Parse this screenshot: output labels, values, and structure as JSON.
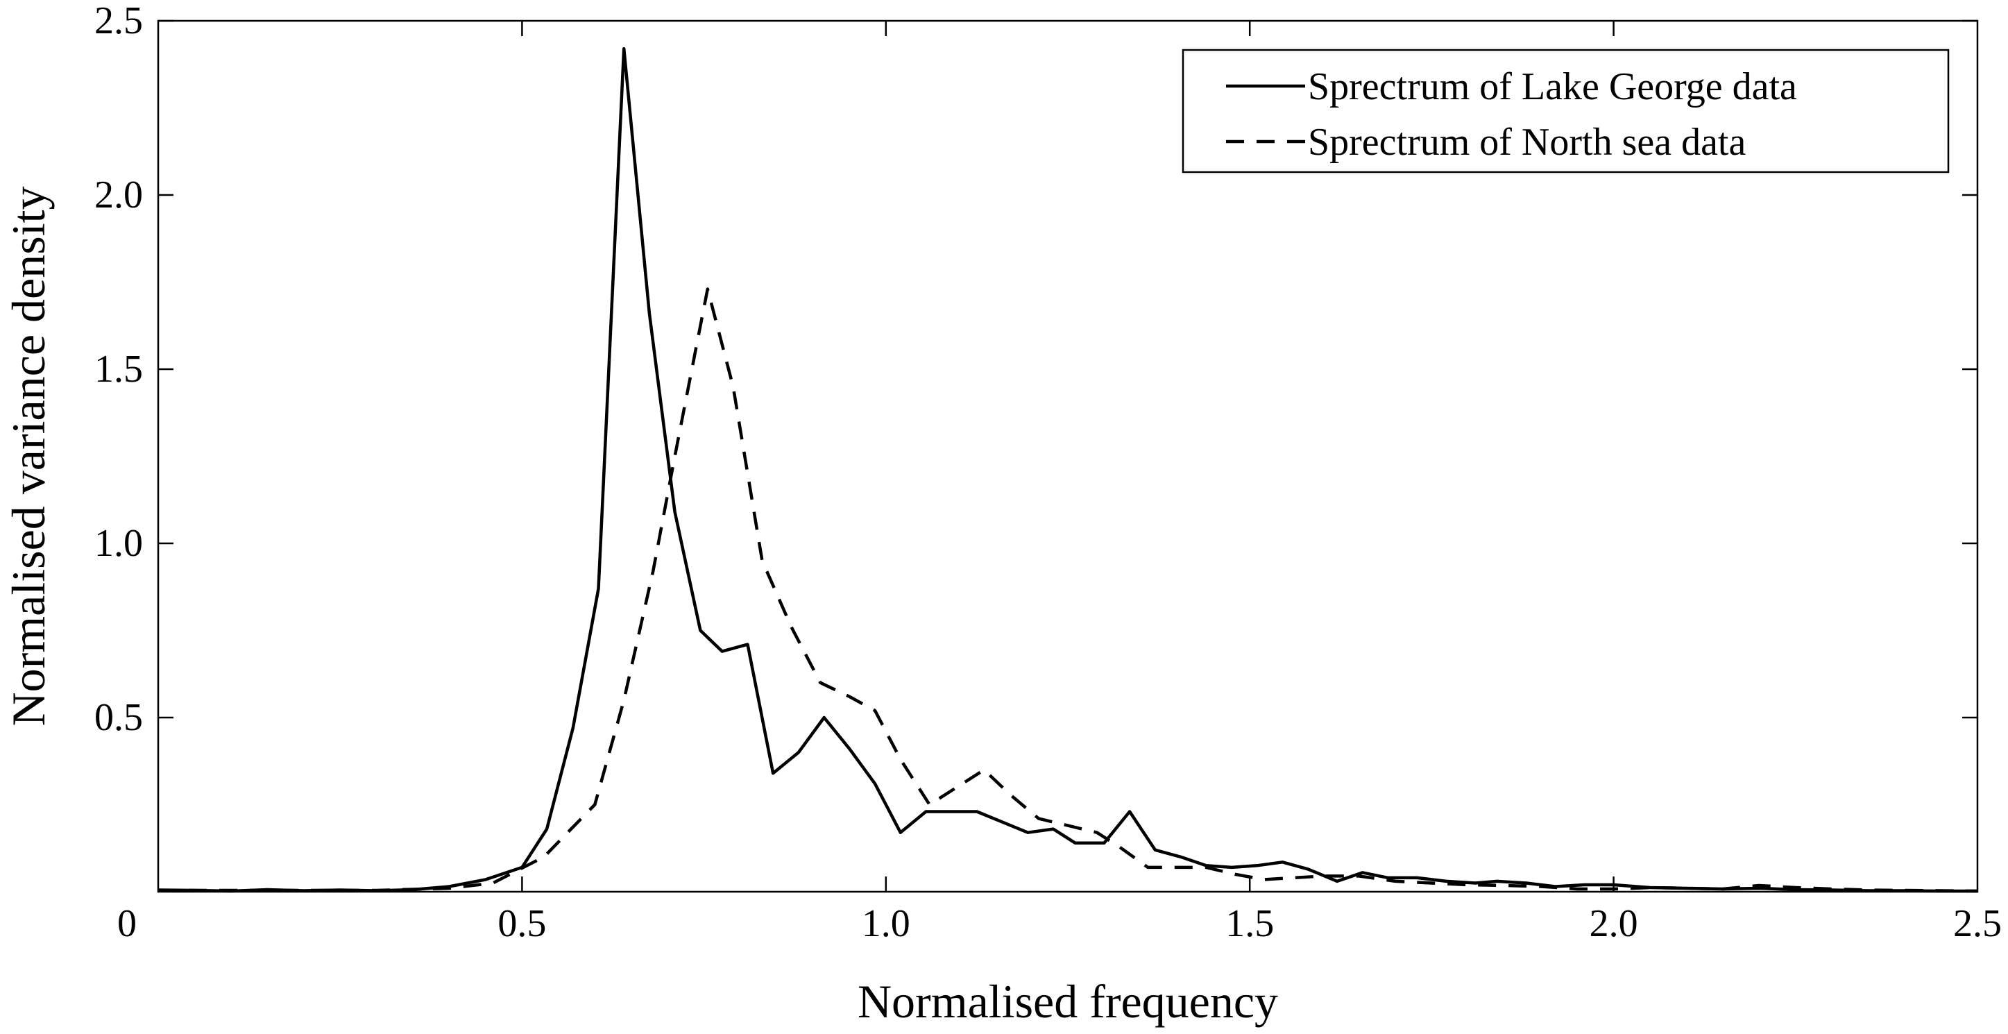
{
  "chart_data": {
    "type": "line",
    "title": "",
    "xlabel": "Normalised frequency",
    "ylabel": "Normalised variance density",
    "xlim": [
      0,
      2.5
    ],
    "ylim": [
      0,
      2.5
    ],
    "x_ticks": [
      0.5,
      1.0,
      1.5,
      2.0
    ],
    "x_tick_labels": [
      "0.5",
      "1.0",
      "1.5",
      "2.0"
    ],
    "x_origin_label": "0",
    "x_end_label": "2.5",
    "y_ticks": [
      0.5,
      1.0,
      1.5,
      2.0,
      2.5
    ],
    "y_tick_labels": [
      "0.5",
      "1.0",
      "1.5",
      "2.0",
      "2.5"
    ],
    "grid": false,
    "legend_position": "top-right",
    "series": [
      {
        "name": "Sprectrum of Lake George data",
        "line_style": "solid",
        "color": "#000000",
        "points": [
          [
            0.0,
            0.005
          ],
          [
            0.05,
            0.004
          ],
          [
            0.1,
            0.002
          ],
          [
            0.15,
            0.006
          ],
          [
            0.2,
            0.003
          ],
          [
            0.25,
            0.005
          ],
          [
            0.3,
            0.003
          ],
          [
            0.35,
            0.006
          ],
          [
            0.4,
            0.015
          ],
          [
            0.45,
            0.035
          ],
          [
            0.5,
            0.07
          ],
          [
            0.534,
            0.18
          ],
          [
            0.57,
            0.47
          ],
          [
            0.605,
            0.87
          ],
          [
            0.64,
            2.42
          ],
          [
            0.675,
            1.66
          ],
          [
            0.71,
            1.09
          ],
          [
            0.745,
            0.75
          ],
          [
            0.775,
            0.69
          ],
          [
            0.81,
            0.71
          ],
          [
            0.845,
            0.34
          ],
          [
            0.88,
            0.4
          ],
          [
            0.915,
            0.5
          ],
          [
            0.95,
            0.41
          ],
          [
            0.985,
            0.31
          ],
          [
            1.02,
            0.17
          ],
          [
            1.055,
            0.23
          ],
          [
            1.09,
            0.23
          ],
          [
            1.125,
            0.23
          ],
          [
            1.16,
            0.2
          ],
          [
            1.195,
            0.17
          ],
          [
            1.23,
            0.18
          ],
          [
            1.26,
            0.14
          ],
          [
            1.3,
            0.14
          ],
          [
            1.335,
            0.23
          ],
          [
            1.37,
            0.12
          ],
          [
            1.405,
            0.1
          ],
          [
            1.44,
            0.075
          ],
          [
            1.475,
            0.07
          ],
          [
            1.51,
            0.075
          ],
          [
            1.545,
            0.085
          ],
          [
            1.58,
            0.065
          ],
          [
            1.62,
            0.03
          ],
          [
            1.655,
            0.055
          ],
          [
            1.69,
            0.04
          ],
          [
            1.73,
            0.04
          ],
          [
            1.77,
            0.03
          ],
          [
            1.81,
            0.025
          ],
          [
            1.84,
            0.03
          ],
          [
            1.88,
            0.025
          ],
          [
            1.92,
            0.015
          ],
          [
            1.96,
            0.02
          ],
          [
            2.0,
            0.02
          ],
          [
            2.05,
            0.012
          ],
          [
            2.1,
            0.01
          ],
          [
            2.15,
            0.008
          ],
          [
            2.2,
            0.01
          ],
          [
            2.25,
            0.006
          ],
          [
            2.3,
            0.005
          ],
          [
            2.35,
            0.003
          ],
          [
            2.4,
            0.003
          ],
          [
            2.45,
            0.002
          ],
          [
            2.5,
            0.002
          ]
        ]
      },
      {
        "name": "Sprectrum of North sea data",
        "line_style": "dashed",
        "color": "#000000",
        "points": [
          [
            0.0,
            0.004
          ],
          [
            0.1,
            0.004
          ],
          [
            0.2,
            0.004
          ],
          [
            0.3,
            0.004
          ],
          [
            0.4,
            0.01
          ],
          [
            0.46,
            0.025
          ],
          [
            0.53,
            0.1
          ],
          [
            0.6,
            0.25
          ],
          [
            0.64,
            0.55
          ],
          [
            0.68,
            0.92
          ],
          [
            0.71,
            1.25
          ],
          [
            0.755,
            1.73
          ],
          [
            0.79,
            1.45
          ],
          [
            0.83,
            0.95
          ],
          [
            0.87,
            0.76
          ],
          [
            0.91,
            0.6
          ],
          [
            0.95,
            0.56
          ],
          [
            0.985,
            0.52
          ],
          [
            1.02,
            0.38
          ],
          [
            1.06,
            0.25
          ],
          [
            1.09,
            0.29
          ],
          [
            1.135,
            0.35
          ],
          [
            1.17,
            0.28
          ],
          [
            1.21,
            0.21
          ],
          [
            1.25,
            0.19
          ],
          [
            1.29,
            0.17
          ],
          [
            1.32,
            0.13
          ],
          [
            1.36,
            0.07
          ],
          [
            1.4,
            0.07
          ],
          [
            1.44,
            0.07
          ],
          [
            1.48,
            0.05
          ],
          [
            1.52,
            0.035
          ],
          [
            1.56,
            0.04
          ],
          [
            1.6,
            0.045
          ],
          [
            1.65,
            0.045
          ],
          [
            1.7,
            0.03
          ],
          [
            1.75,
            0.025
          ],
          [
            1.8,
            0.02
          ],
          [
            1.85,
            0.018
          ],
          [
            1.9,
            0.015
          ],
          [
            1.95,
            0.008
          ],
          [
            2.0,
            0.008
          ],
          [
            2.05,
            0.012
          ],
          [
            2.1,
            0.01
          ],
          [
            2.15,
            0.008
          ],
          [
            2.2,
            0.018
          ],
          [
            2.25,
            0.012
          ],
          [
            2.3,
            0.008
          ],
          [
            2.35,
            0.005
          ],
          [
            2.4,
            0.004
          ],
          [
            2.45,
            0.003
          ],
          [
            2.5,
            0.002
          ]
        ]
      }
    ]
  }
}
